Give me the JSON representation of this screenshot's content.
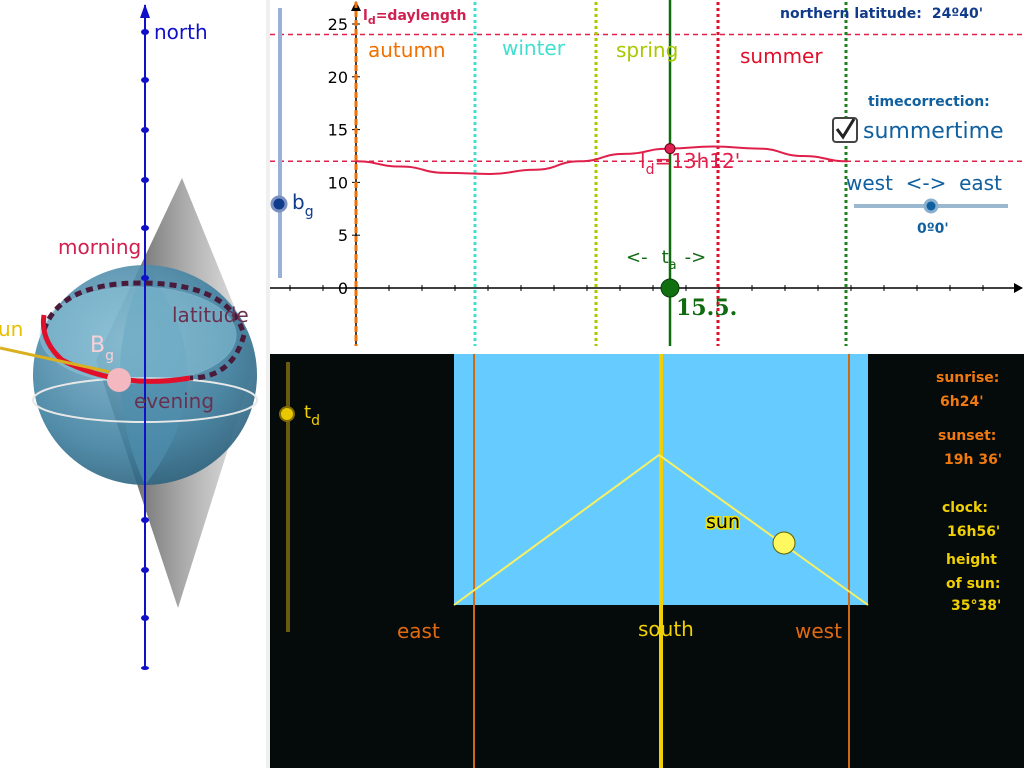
{
  "view3d": {
    "axis_label": "north",
    "morning_label": "morning",
    "evening_label": "evening",
    "latitude_label": "latitude",
    "sun_label": "un",
    "point_label": "B",
    "point_sub": "g"
  },
  "graph": {
    "ylabel_main": "l",
    "ylabel_sub": "d",
    "ylabel_rest": "=daylength",
    "yticks": [
      "25",
      "20",
      "15",
      "10",
      "5",
      "0"
    ],
    "seasons": [
      "autumn",
      "winter",
      "spring",
      "summer"
    ],
    "latitude_caption": "northern latitude:",
    "latitude_value": "24º40'",
    "timecorrection_label": "timecorrection:",
    "summertime_label": "summertime",
    "summertime_checked": true,
    "westeast_label": "west  <->  east",
    "westeast_value": "0º0'",
    "bg_label": "b",
    "bg_sub": "g",
    "ld_value_main": "l",
    "ld_value_sub": "d",
    "ld_value_rest": "=13h12'",
    "ta_arrow_left": "<-",
    "ta_label": "t",
    "ta_sub": "a",
    "ta_arrow_right": "->",
    "ta_value": "15.5.",
    "colors": {
      "autumn": "#f07000",
      "winter": "#40e0d0",
      "spring": "#a8c800",
      "summer": "#e0102a",
      "curve": "#e0204a"
    }
  },
  "chart_data": {
    "type": "line",
    "title": "",
    "ylabel": "l=daylength",
    "xlabel": "",
    "ylim": [
      0,
      26
    ],
    "yticks": [
      0,
      5,
      10,
      15,
      20,
      25
    ],
    "series": [
      {
        "values": [
          12,
          11.5,
          10.9,
          10.8,
          11.2,
          12,
          12.7,
          13.2,
          13.4,
          13.2,
          12.5,
          12
        ]
      }
    ],
    "reference_lines": [
      12,
      24
    ],
    "current_value": 13.2
  },
  "skyview": {
    "td_label": "t",
    "td_sub": "d",
    "sun_label": "sun",
    "east_label": "east",
    "south_label": "south",
    "west_label": "west",
    "sunrise_label": "sunrise:",
    "sunrise_value": "6h24'",
    "sunset_label": "sunset:",
    "sunset_value": "19h 36'",
    "clock_label": "clock:",
    "clock_value": "16h56'",
    "height_label_1": "height",
    "height_label_2": "of sun:",
    "height_value": "35°38'"
  }
}
